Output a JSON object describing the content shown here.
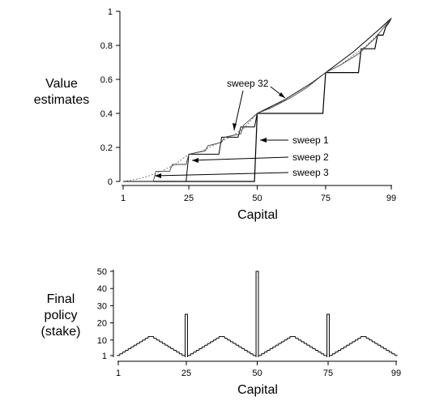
{
  "chart_data": [
    {
      "type": "line",
      "ylabel_lines": [
        "Value",
        "estimates"
      ],
      "xlabel": "Capital",
      "xlim": [
        1,
        99
      ],
      "ylim": [
        0,
        1
      ],
      "x_ticks": [
        1,
        25,
        50,
        75,
        99
      ],
      "y_ticks": [
        0,
        0.2,
        0.4,
        0.6,
        0.8,
        1
      ],
      "y_tick_labels": [
        "0",
        "0.2",
        "0.4",
        "0.6",
        "0.8",
        "1"
      ],
      "series": [
        {
          "name": "sweep 1",
          "x": [
            1,
            49,
            50,
            74,
            75,
            87,
            88,
            93,
            94,
            96,
            97,
            98,
            99
          ],
          "y": [
            0,
            0,
            0.4,
            0.4,
            0.64,
            0.64,
            0.78,
            0.78,
            0.86,
            0.86,
            0.91,
            0.93,
            0.96
          ]
        },
        {
          "name": "sweep 2",
          "x": [
            1,
            24,
            25,
            36,
            37,
            43,
            44,
            49,
            50,
            55,
            60,
            65,
            70,
            75,
            80,
            85,
            90,
            95,
            99
          ],
          "y": [
            0,
            0,
            0.16,
            0.16,
            0.26,
            0.26,
            0.32,
            0.32,
            0.4,
            0.44,
            0.48,
            0.53,
            0.58,
            0.64,
            0.7,
            0.76,
            0.83,
            0.9,
            0.96
          ]
        },
        {
          "name": "sweep 3",
          "x": [
            1,
            12,
            13,
            18,
            19,
            24,
            25,
            31,
            32,
            37,
            38,
            44,
            45,
            50,
            56,
            62,
            68,
            75,
            81,
            87,
            93,
            99
          ],
          "y": [
            0,
            0,
            0.06,
            0.06,
            0.1,
            0.1,
            0.16,
            0.18,
            0.21,
            0.23,
            0.26,
            0.28,
            0.33,
            0.4,
            0.44,
            0.49,
            0.55,
            0.64,
            0.69,
            0.75,
            0.84,
            0.96
          ]
        },
        {
          "name": "sweep 32",
          "x": [
            1,
            5,
            10,
            15,
            20,
            25,
            30,
            35,
            40,
            45,
            50,
            55,
            60,
            65,
            70,
            75,
            80,
            85,
            90,
            95,
            99
          ],
          "y": [
            0,
            0.01,
            0.03,
            0.06,
            0.1,
            0.16,
            0.18,
            0.22,
            0.26,
            0.31,
            0.4,
            0.43,
            0.48,
            0.53,
            0.58,
            0.64,
            0.68,
            0.74,
            0.8,
            0.88,
            0.96
          ]
        }
      ],
      "annotations": [
        "sweep 32",
        "sweep 1",
        "sweep 2",
        "sweep 3"
      ]
    },
    {
      "type": "bar",
      "ylabel_lines": [
        "Final",
        "policy",
        "(stake)"
      ],
      "xlabel": "Capital",
      "xlim": [
        1,
        99
      ],
      "ylim": [
        0,
        50
      ],
      "x_ticks": [
        1,
        25,
        50,
        75,
        99
      ],
      "y_ticks": [
        1,
        10,
        20,
        30,
        40,
        50
      ],
      "y_tick_labels": [
        "1",
        "10",
        "20",
        "30",
        "40",
        "50"
      ],
      "capital": [
        1,
        2,
        3,
        4,
        5,
        6,
        7,
        8,
        9,
        10,
        11,
        12,
        13,
        14,
        15,
        16,
        17,
        18,
        19,
        20,
        21,
        22,
        23,
        24,
        25,
        26,
        27,
        28,
        29,
        30,
        31,
        32,
        33,
        34,
        35,
        36,
        37,
        38,
        39,
        40,
        41,
        42,
        43,
        44,
        45,
        46,
        47,
        48,
        49,
        50,
        51,
        52,
        53,
        54,
        55,
        56,
        57,
        58,
        59,
        60,
        61,
        62,
        63,
        64,
        65,
        66,
        67,
        68,
        69,
        70,
        71,
        72,
        73,
        74,
        75,
        76,
        77,
        78,
        79,
        80,
        81,
        82,
        83,
        84,
        85,
        86,
        87,
        88,
        89,
        90,
        91,
        92,
        93,
        94,
        95,
        96,
        97,
        98,
        99
      ],
      "stake": [
        1,
        2,
        3,
        4,
        5,
        6,
        7,
        8,
        9,
        10,
        11,
        12,
        12,
        11,
        10,
        9,
        8,
        7,
        6,
        5,
        4,
        3,
        2,
        1,
        25,
        1,
        2,
        3,
        4,
        5,
        6,
        7,
        8,
        9,
        10,
        11,
        12,
        12,
        11,
        10,
        9,
        8,
        7,
        6,
        5,
        4,
        3,
        2,
        1,
        50,
        1,
        2,
        3,
        4,
        5,
        6,
        7,
        8,
        9,
        10,
        11,
        12,
        12,
        11,
        10,
        9,
        8,
        7,
        6,
        5,
        4,
        3,
        2,
        1,
        25,
        1,
        2,
        3,
        4,
        5,
        6,
        7,
        8,
        9,
        10,
        11,
        12,
        12,
        11,
        10,
        9,
        8,
        7,
        6,
        5,
        4,
        3,
        2,
        1
      ]
    }
  ]
}
